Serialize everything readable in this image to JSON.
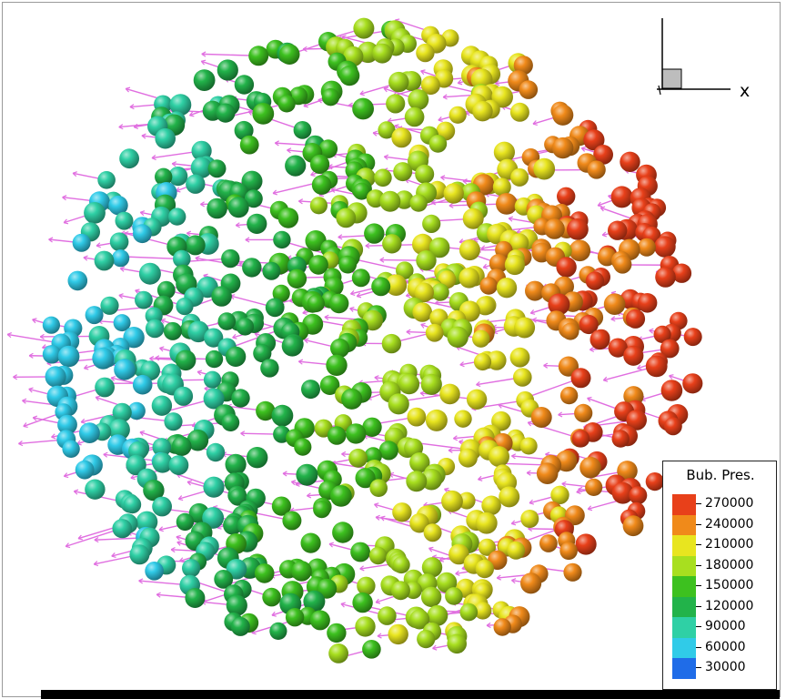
{
  "legend": {
    "title": "Bub. Pres.",
    "entries": [
      {
        "label": "270000",
        "color": "#e8401a"
      },
      {
        "label": "240000",
        "color": "#f08a1a"
      },
      {
        "label": "210000",
        "color": "#e8e51f"
      },
      {
        "label": "180000",
        "color": "#a8df1f"
      },
      {
        "label": "150000",
        "color": "#3dc11f"
      },
      {
        "label": "120000",
        "color": "#22b34a"
      },
      {
        "label": "90000",
        "color": "#2fd0a5"
      },
      {
        "label": "60000",
        "color": "#30cbe8"
      },
      {
        "label": "30000",
        "color": "#1f6ce8"
      }
    ]
  },
  "axis": {
    "x_label": "x"
  },
  "colors": {
    "arrow": "#e06ee0",
    "frame": "#9a9a9a",
    "bar": "#000000"
  }
}
